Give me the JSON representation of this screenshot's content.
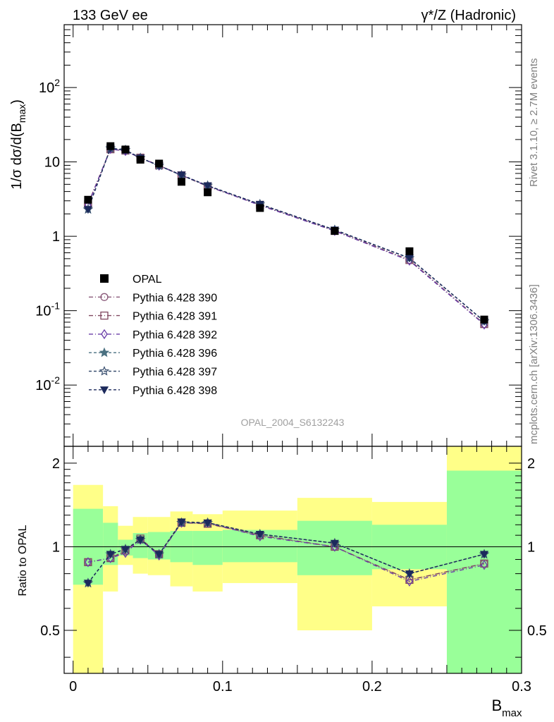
{
  "header": {
    "left_title": "133 GeV ee",
    "right_title": "γ*/Z (Hadronic)"
  },
  "side_text": {
    "rivet": "Rivet 3.1.10, ≥ 2.7M events",
    "mcplots": "mcplots.cern.ch [arXiv:1306.3436]"
  },
  "watermark": "OPAL_2004_S6132243",
  "chart_data": [
    {
      "type": "line",
      "panel": "main",
      "ylabel": "1/σ dσ/d(B_max)",
      "yscale": "log",
      "ylim": [
        0.0015,
        700
      ],
      "xlim": [
        -0.006,
        0.3
      ],
      "y_tick_labels": [
        "10^-2",
        "10^-1",
        "1",
        "10",
        "10^2"
      ],
      "x": [
        0.01,
        0.025,
        0.035,
        0.045,
        0.0575,
        0.0725,
        0.09,
        0.125,
        0.175,
        0.225,
        0.275
      ],
      "data": {
        "name": "OPAL",
        "color": "#000000",
        "values": [
          3.1,
          16.3,
          14.7,
          10.7,
          9.5,
          5.4,
          3.9,
          2.4,
          1.18,
          0.63,
          0.076
        ]
      },
      "series": [
        {
          "name": "Pythia 6.428 390",
          "color": "#8a5a7a",
          "marker": "circle-open",
          "dash": "6,3,1,3",
          "values": [
            2.7,
            14.9,
            14.1,
            11.3,
            9.0,
            6.6,
            4.7,
            2.65,
            1.2,
            0.48,
            0.066
          ]
        },
        {
          "name": "Pythia 6.428 391",
          "color": "#804860",
          "marker": "square-open",
          "dash": "6,3,1,3",
          "values": [
            2.7,
            14.8,
            14.2,
            11.4,
            9.0,
            6.6,
            4.7,
            2.65,
            1.18,
            0.48,
            0.066
          ]
        },
        {
          "name": "Pythia 6.428 392",
          "color": "#6a3ea8",
          "marker": "diamond-open",
          "dash": "6,3,1,3",
          "values": [
            2.65,
            14.9,
            14.0,
            11.3,
            8.9,
            6.6,
            4.75,
            2.6,
            1.18,
            0.47,
            0.065
          ]
        },
        {
          "name": "Pythia 6.428 396",
          "color": "#4a7080",
          "marker": "star-filled",
          "dash": "4,3",
          "values": [
            2.3,
            15.2,
            14.4,
            11.3,
            8.9,
            6.6,
            4.8,
            2.7,
            1.22,
            0.51,
            0.072
          ]
        },
        {
          "name": "Pythia 6.428 397",
          "color": "#3a5070",
          "marker": "star-open",
          "dash": "4,3",
          "values": [
            2.3,
            15.3,
            14.5,
            11.3,
            8.9,
            6.6,
            4.8,
            2.7,
            1.22,
            0.51,
            0.072
          ]
        },
        {
          "name": "Pythia 6.428 398",
          "color": "#1c2a5c",
          "marker": "triangle-down-filled",
          "dash": "4,3",
          "values": [
            2.3,
            15.3,
            14.4,
            11.3,
            8.9,
            6.7,
            4.8,
            2.7,
            1.22,
            0.51,
            0.072
          ]
        }
      ],
      "legend_position": "lower-left"
    },
    {
      "type": "line",
      "panel": "ratio",
      "xlabel": "B_max",
      "ylabel": "Ratio to OPAL",
      "ylim": [
        0.35,
        2.3
      ],
      "xlim": [
        -0.006,
        0.3
      ],
      "x_tick_labels": [
        "0",
        "0.1",
        "0.2",
        "0.3"
      ],
      "y_tick_labels": [
        "0.5",
        "1",
        "2"
      ],
      "bands": {
        "x_edges": [
          0.0,
          0.02,
          0.03,
          0.04,
          0.05,
          0.065,
          0.08,
          0.1,
          0.15,
          0.2,
          0.25,
          0.3
        ],
        "yellow_low": [
          0.35,
          0.69,
          0.86,
          0.8,
          0.79,
          0.72,
          0.69,
          0.74,
          0.5,
          0.61,
          0.35
        ],
        "yellow_high": [
          1.67,
          1.4,
          1.19,
          1.28,
          1.28,
          1.34,
          1.31,
          1.35,
          1.5,
          1.45,
          2.3
        ],
        "green_low": [
          0.73,
          0.86,
          0.93,
          0.91,
          0.9,
          0.88,
          0.86,
          0.88,
          0.79,
          0.83,
          0.35
        ],
        "green_high": [
          1.37,
          1.22,
          1.06,
          1.12,
          1.13,
          1.14,
          1.14,
          1.15,
          1.24,
          1.2,
          1.88
        ]
      },
      "x": [
        0.01,
        0.025,
        0.035,
        0.045,
        0.0575,
        0.0725,
        0.09,
        0.125,
        0.175,
        0.225,
        0.275
      ],
      "series": [
        {
          "name": "Pythia 6.428 390",
          "values": [
            0.88,
            0.91,
            0.96,
            1.06,
            0.94,
            1.22,
            1.21,
            1.1,
            1.0,
            0.76,
            0.87
          ]
        },
        {
          "name": "Pythia 6.428 391",
          "values": [
            0.88,
            0.91,
            0.97,
            1.07,
            0.94,
            1.22,
            1.21,
            1.1,
            1.0,
            0.76,
            0.87
          ]
        },
        {
          "name": "Pythia 6.428 392",
          "values": [
            0.88,
            0.91,
            0.95,
            1.06,
            0.93,
            1.22,
            1.22,
            1.09,
            1.0,
            0.75,
            0.86
          ]
        },
        {
          "name": "Pythia 6.428 396",
          "values": [
            0.74,
            0.94,
            0.98,
            1.06,
            0.94,
            1.22,
            1.22,
            1.11,
            1.03,
            0.8,
            0.94
          ]
        },
        {
          "name": "Pythia 6.428 397",
          "values": [
            0.74,
            0.94,
            0.98,
            1.06,
            0.94,
            1.22,
            1.22,
            1.11,
            1.03,
            0.8,
            0.94
          ]
        },
        {
          "name": "Pythia 6.428 398",
          "values": [
            0.74,
            0.94,
            0.98,
            1.06,
            0.94,
            1.23,
            1.22,
            1.11,
            1.03,
            0.8,
            0.94
          ]
        }
      ]
    }
  ]
}
